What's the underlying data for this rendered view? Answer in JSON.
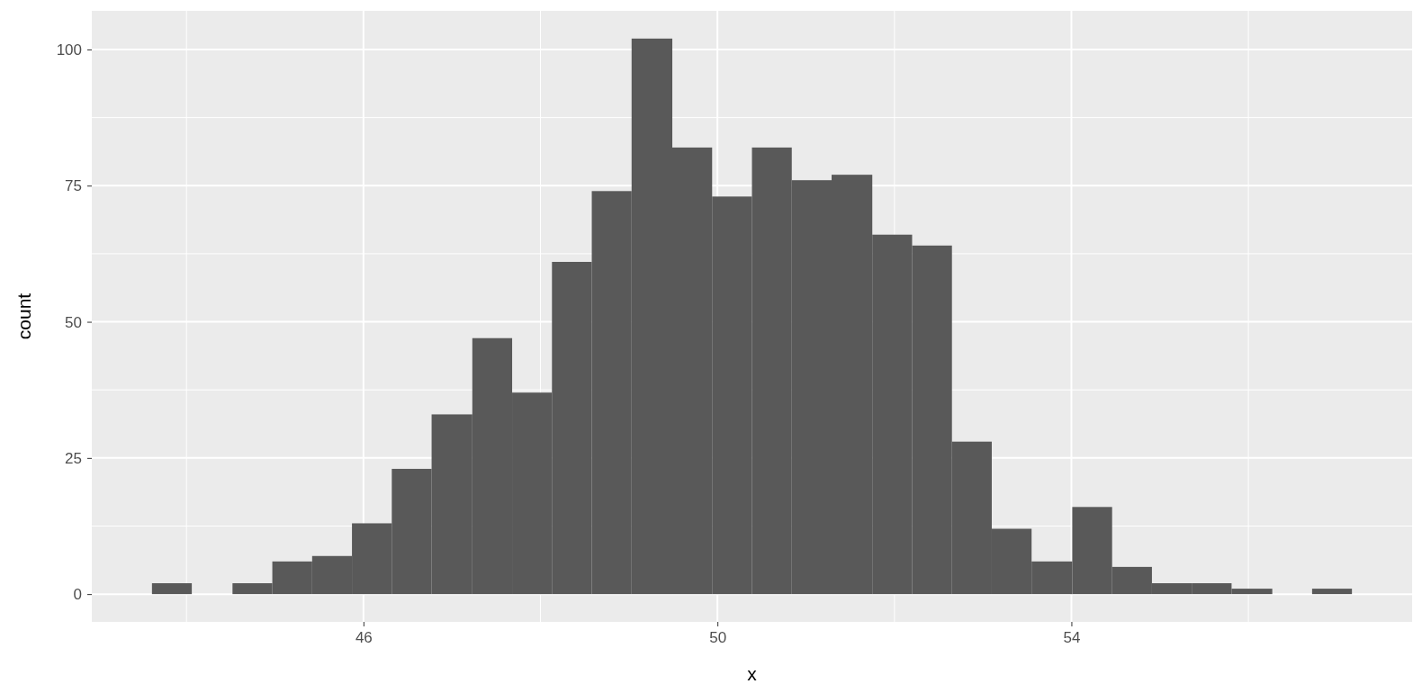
{
  "chart_data": {
    "type": "histogram",
    "xlabel": "x",
    "ylabel": "count",
    "color": "#595959",
    "bins": [
      43.61,
      44.06,
      44.52,
      44.97,
      45.42,
      45.87,
      46.32,
      46.77,
      47.23,
      47.68,
      48.13,
      48.58,
      49.03,
      49.49,
      49.94,
      50.39,
      50.84,
      51.29,
      51.75,
      52.2,
      52.65,
      53.1,
      53.55,
      54.01,
      54.46,
      54.91,
      55.36,
      55.81,
      56.27,
      56.72,
      57.17
    ],
    "values": [
      2,
      0,
      2,
      6,
      7,
      13,
      23,
      33,
      47,
      37,
      61,
      74,
      102,
      82,
      73,
      82,
      76,
      77,
      66,
      64,
      28,
      12,
      6,
      16,
      5,
      2,
      2,
      1,
      0,
      1
    ],
    "xlim": [
      42.93,
      57.85
    ],
    "xticks": [
      46,
      50,
      54
    ],
    "ylim": [
      -5.1,
      107.1
    ],
    "yticks": [
      0,
      25,
      50,
      75,
      100
    ],
    "grid": true
  }
}
